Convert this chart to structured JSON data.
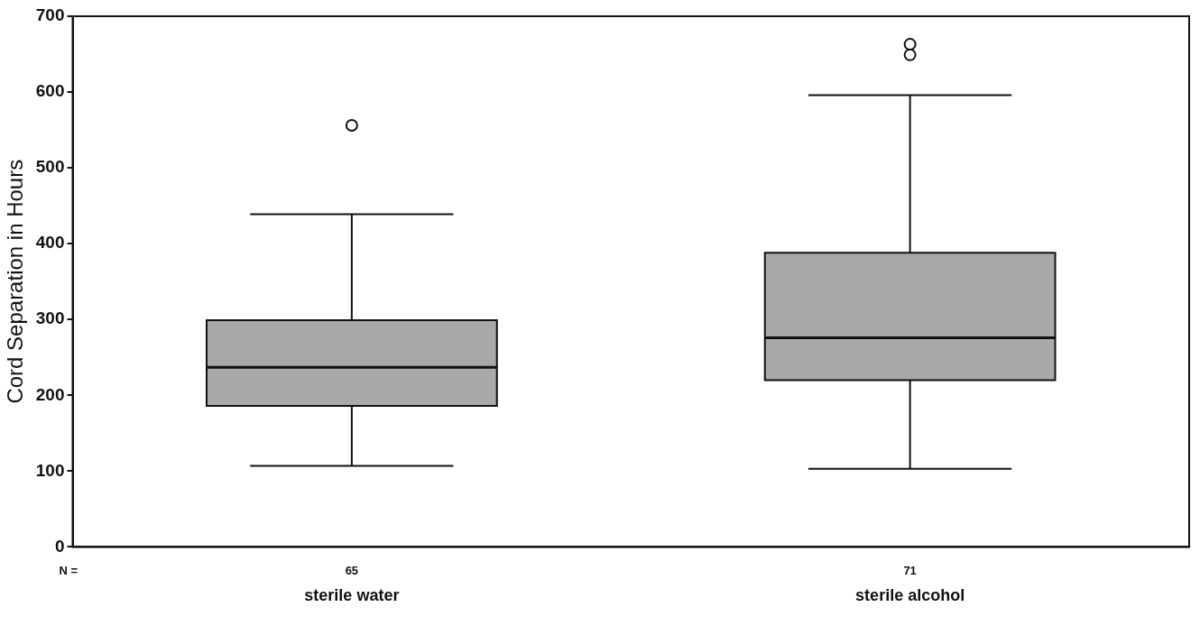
{
  "chart_data": {
    "type": "box",
    "ylabel": "Cord Separation in Hours",
    "categories": [
      "sterile water",
      "sterile alcohol"
    ],
    "color": "#a9a9a9",
    "boxes": [
      {
        "low": 107,
        "q1": 186,
        "median": 237,
        "q3": 299,
        "high": 439,
        "outliers": [
          556
        ]
      },
      {
        "low": 103,
        "q1": 220,
        "median": 276,
        "q3": 388,
        "high": 596,
        "outliers": [
          649,
          663
        ]
      }
    ],
    "ylim": [
      0,
      700
    ],
    "yticks": [
      0,
      100,
      200,
      300,
      400,
      500,
      600,
      700
    ],
    "annotations": [
      "N =",
      "65",
      "71"
    ],
    "grid": false,
    "legend": false
  }
}
